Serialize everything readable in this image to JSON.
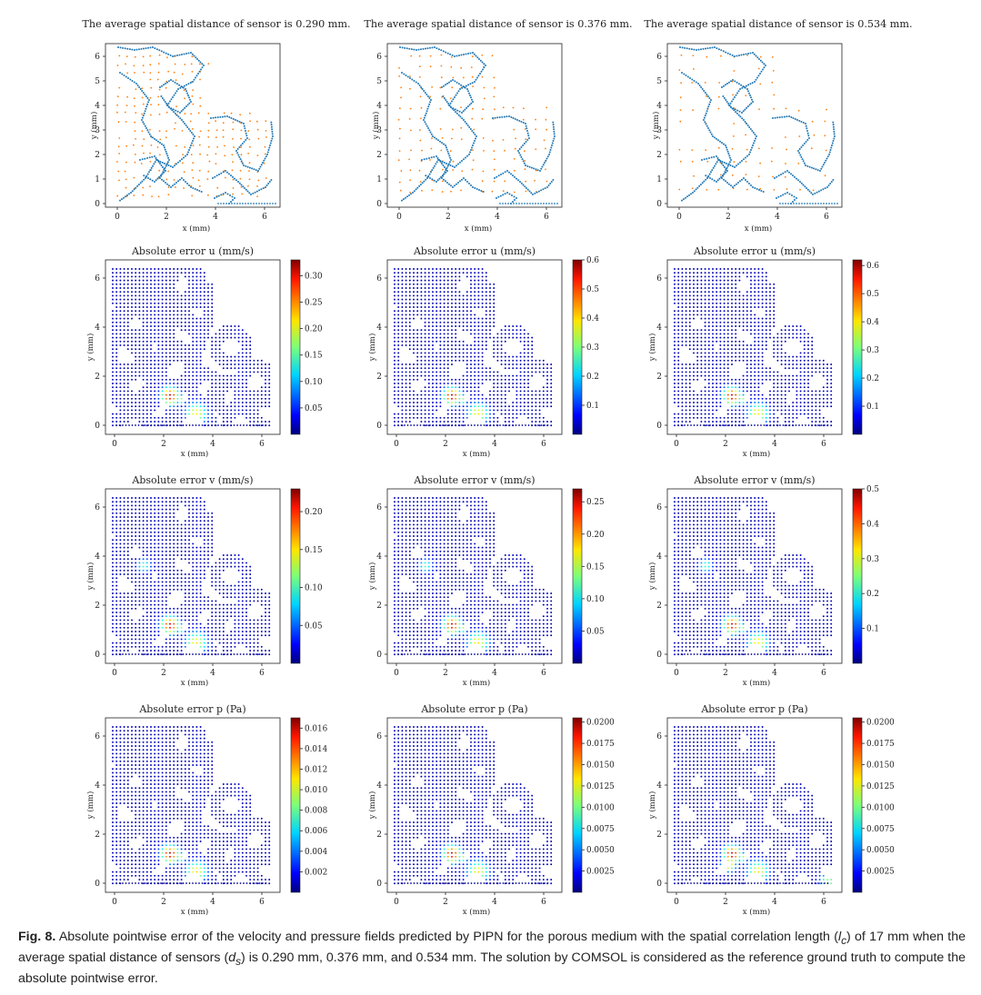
{
  "figure": {
    "row_titles": [
      [
        "The average spatial distance of sensor is 0.290 mm.",
        "The average spatial distance of sensor is 0.376 mm.",
        "The average spatial distance of sensor is 0.534 mm."
      ],
      [
        "Absolute error u (mm/s)",
        "Absolute error u (mm/s)",
        "Absolute error u (mm/s)"
      ],
      [
        "Absolute error v (mm/s)",
        "Absolute error v (mm/s)",
        "Absolute error v (mm/s)"
      ],
      [
        "Absolute error p (Pa)",
        "Absolute error p (Pa)",
        "Absolute error p (Pa)"
      ]
    ],
    "xlabel": "x (mm)",
    "ylabel": "y (mm)",
    "sensor_x_ticks": [
      "0",
      "2",
      "4",
      "6"
    ],
    "sensor_y_ticks": [
      "0",
      "1",
      "2",
      "3",
      "4",
      "5",
      "6"
    ],
    "error_x_ticks": [
      "0",
      "2",
      "4",
      "6"
    ],
    "error_y_ticks": [
      "0",
      "2",
      "4",
      "6"
    ],
    "colorbar_ticks": [
      [
        [
          "0.30",
          "0.25",
          "0.20",
          "0.15",
          "0.10",
          "0.05"
        ],
        [
          "0.6",
          "0.5",
          "0.4",
          "0.3",
          "0.2",
          "0.1"
        ],
        [
          "0.6",
          "0.5",
          "0.4",
          "0.3",
          "0.2",
          "0.1"
        ]
      ],
      [
        [
          "0.20",
          "0.15",
          "0.10",
          "0.05"
        ],
        [
          "0.25",
          "0.20",
          "0.15",
          "0.10",
          "0.05"
        ],
        [
          "0.5",
          "0.4",
          "0.3",
          "0.2",
          "0.1"
        ]
      ],
      [
        [
          "0.016",
          "0.014",
          "0.012",
          "0.010",
          "0.008",
          "0.006",
          "0.004",
          "0.002"
        ],
        [
          "0.0200",
          "0.0175",
          "0.0150",
          "0.0125",
          "0.0100",
          "0.0075",
          "0.0050",
          "0.0025"
        ],
        [
          "0.0200",
          "0.0175",
          "0.0150",
          "0.0125",
          "0.0100",
          "0.0075",
          "0.0050",
          "0.0025"
        ]
      ]
    ],
    "colorbar_max": [
      [
        0.33,
        0.6,
        0.62
      ],
      [
        0.23,
        0.27,
        0.5
      ],
      [
        0.017,
        0.0205,
        0.0205
      ]
    ],
    "colors": {
      "boundary": "#1f77b4",
      "sensor": "#ff7f0e",
      "cmap": "jet"
    }
  },
  "caption": {
    "label": "Fig. 8.",
    "text_1": " Absolute pointwise error of the velocity and pressure fields predicted by PIPN for the porous medium with the spatial correlation length (",
    "lc_sym": "l",
    "lc_sub": "c",
    "text_2": ") of 17 mm when the average spatial distance of sensors (",
    "ds_sym": "d",
    "ds_sub": "s",
    "text_3": ") is 0.290 mm, 0.376 mm, and 0.534 mm. The solution by COMSOL is considered as the reference ground truth to compute the absolute pointwise error."
  }
}
